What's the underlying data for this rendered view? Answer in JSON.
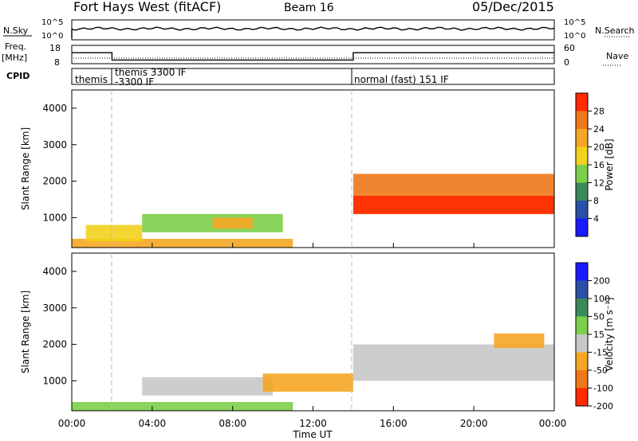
{
  "header": {
    "station": "Fort Hays West (fitACF)",
    "beam": "Beam 16",
    "date": "05/Dec/2015"
  },
  "strips": {
    "nsky_label": "N.Sky",
    "nsearch_label": "N.Search",
    "freq_label_line1": "Freq.",
    "freq_label_line2": "[MHz]",
    "nave_label": "Nave",
    "cpid_label": "CPID",
    "nsky_ticks": [
      "10^5",
      "10^0"
    ],
    "nsearch_ticks": [
      "10^5",
      "10^0"
    ],
    "freq_ticks": [
      "18",
      "8"
    ],
    "nave_ticks": [
      "60",
      "0"
    ]
  },
  "cpid": {
    "segment1": "themis",
    "segment2_line1": "themis 3300 IF",
    "segment2_line2": "-3300 IF",
    "segment3": "normal (fast) 151 IF"
  },
  "axes": {
    "ylabel": "Slant Range [km]",
    "xlabel": "Time UT",
    "ytick_labels": [
      "1000",
      "2000",
      "3000",
      "4000"
    ],
    "xtick_labels": [
      "00:00",
      "04:00",
      "08:00",
      "12:00",
      "16:00",
      "20:00",
      "00:00"
    ]
  },
  "colorbars": {
    "power_label": "Power [dB]",
    "power_ticks": [
      "4",
      "8",
      "12",
      "16",
      "20",
      "24",
      "28"
    ],
    "velocity_label": "Velocity [m s⁻¹]",
    "velocity_ticks": [
      "200",
      "100",
      "50",
      "15",
      "-15",
      "-50",
      "-100",
      "-200"
    ]
  },
  "chart_data": [
    {
      "type": "heatmap",
      "title": "Power",
      "x_unit": "hours UT",
      "xlim": [
        0,
        24
      ],
      "ylabel": "Slant Range [km]",
      "ylim": [
        180,
        4500
      ],
      "color_scale_label": "Power [dB]",
      "color_ticks": [
        4,
        8,
        12,
        16,
        20,
        24,
        28
      ],
      "color_stops": [
        "#1a1aff",
        "#2a4fa8",
        "#3a8a5a",
        "#7ccf4a",
        "#f2d21c",
        "#f5a623",
        "#f07818",
        "#ff2a00"
      ],
      "regions": [
        {
          "t_start": 0.0,
          "t_end": 11.0,
          "range_start": 180,
          "range_end": 420,
          "power_db": 22
        },
        {
          "t_start": 0.7,
          "t_end": 3.5,
          "range_start": 350,
          "range_end": 800,
          "power_db": 18
        },
        {
          "t_start": 3.5,
          "t_end": 10.5,
          "range_start": 600,
          "range_end": 1100,
          "power_db": 12
        },
        {
          "t_start": 7.0,
          "t_end": 9.0,
          "range_start": 700,
          "range_end": 1000,
          "power_db": 20
        },
        {
          "t_start": 14.0,
          "t_end": 24.0,
          "range_start": 1100,
          "range_end": 2200,
          "power_db": 24
        },
        {
          "t_start": 14.0,
          "t_end": 24.0,
          "range_start": 1100,
          "range_end": 1600,
          "power_db": 30
        }
      ]
    },
    {
      "type": "heatmap",
      "title": "Velocity",
      "x_unit": "hours UT",
      "xlim": [
        0,
        24
      ],
      "ylabel": "Slant Range [km]",
      "ylim": [
        180,
        4500
      ],
      "color_scale_label": "Velocity [m s⁻¹]",
      "color_ticks": [
        200,
        100,
        50,
        15,
        -15,
        -50,
        -100,
        -200
      ],
      "color_stops": [
        "#1a1aff",
        "#2a4fa8",
        "#3a8a5a",
        "#7ccf4a",
        "#c8c8c8",
        "#f5a623",
        "#f07818",
        "#ff2a00"
      ],
      "regions": [
        {
          "t_start": 0.0,
          "t_end": 11.0,
          "range_start": 180,
          "range_end": 420,
          "velocity": 30
        },
        {
          "t_start": 3.5,
          "t_end": 10.0,
          "range_start": 600,
          "range_end": 1100,
          "velocity": 0
        },
        {
          "t_start": 9.5,
          "t_end": 14.0,
          "range_start": 700,
          "range_end": 1200,
          "velocity": -60
        },
        {
          "t_start": 14.0,
          "t_end": 24.0,
          "range_start": 1000,
          "range_end": 2000,
          "velocity": 0
        },
        {
          "t_start": 21.0,
          "t_end": 23.5,
          "range_start": 1900,
          "range_end": 2300,
          "velocity": -60
        }
      ]
    }
  ],
  "timeseries": {
    "freq_mhz": [
      {
        "t_start": 0,
        "t_end": 2,
        "value": 14
      },
      {
        "t_start": 2,
        "t_end": 14,
        "value": 10
      },
      {
        "t_start": 14,
        "t_end": 24,
        "value": 14
      }
    ],
    "cpid_boundaries": [
      2,
      14
    ]
  }
}
